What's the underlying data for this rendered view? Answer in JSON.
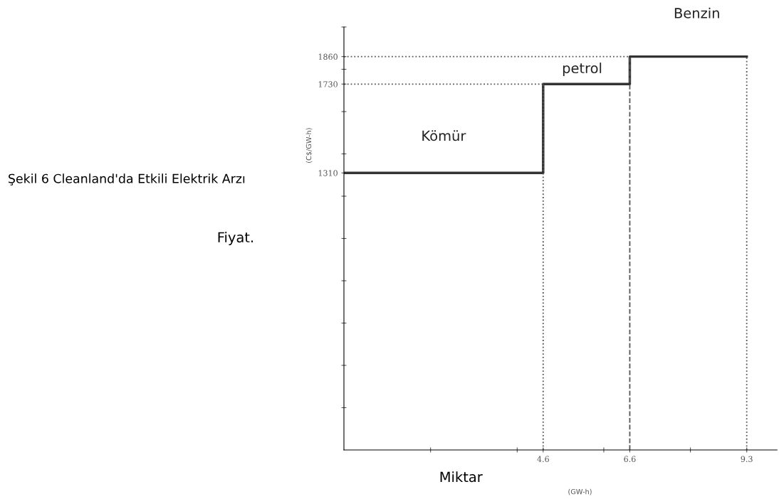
{
  "chart_data": {
    "type": "step",
    "title": "Şekil 6 Cleanland'da Etkili Elektrik Arzı",
    "xlabel": "Miktar",
    "ylabel": "Fiyat.",
    "x": [
      0,
      4.6,
      6.6,
      9.3
    ],
    "series": [
      {
        "color": "#333333",
        "values": [
          1310,
          1730,
          1860,
          1860
        ]
      }
    ],
    "xlim": [
      0,
      10
    ],
    "ylim": [
      0,
      2000
    ],
    "xticks": [
      {
        "value": 2,
        "label": null
      },
      {
        "value": 4,
        "label": null
      },
      4.6,
      {
        "value": 6,
        "label": null
      },
      6.6,
      {
        "value": 8,
        "label": null
      },
      9.3
    ],
    "yticks": [
      {
        "value": 200,
        "label": null
      },
      {
        "value": 400,
        "label": null
      },
      {
        "value": 600,
        "label": null
      },
      {
        "value": 800,
        "label": null
      },
      {
        "value": 1000,
        "label": null
      },
      {
        "value": 1200,
        "label": null
      },
      1310,
      {
        "value": 1400,
        "label": null
      },
      {
        "value": 1600,
        "label": null
      },
      1730,
      {
        "value": 1800,
        "label": null
      },
      1860,
      {
        "value": 2000,
        "label": null
      }
    ],
    "ref_lines": [
      {
        "axis": "y",
        "value": 1730,
        "line_style": "dotted"
      },
      {
        "axis": "y",
        "value": 1860,
        "line_style": "dotted"
      },
      {
        "axis": "x",
        "value": 4.6,
        "line_style": "dotted"
      },
      {
        "axis": "x",
        "value": 6.6,
        "line_style": "dashed"
      },
      {
        "axis": "x",
        "value": 9.3,
        "line_style": "dotted"
      }
    ],
    "annotations": [
      "(C$/GW-h)",
      "(GW-h)",
      "Kömür",
      "petrol",
      "Benzin"
    ],
    "grid": false,
    "legend": false
  }
}
